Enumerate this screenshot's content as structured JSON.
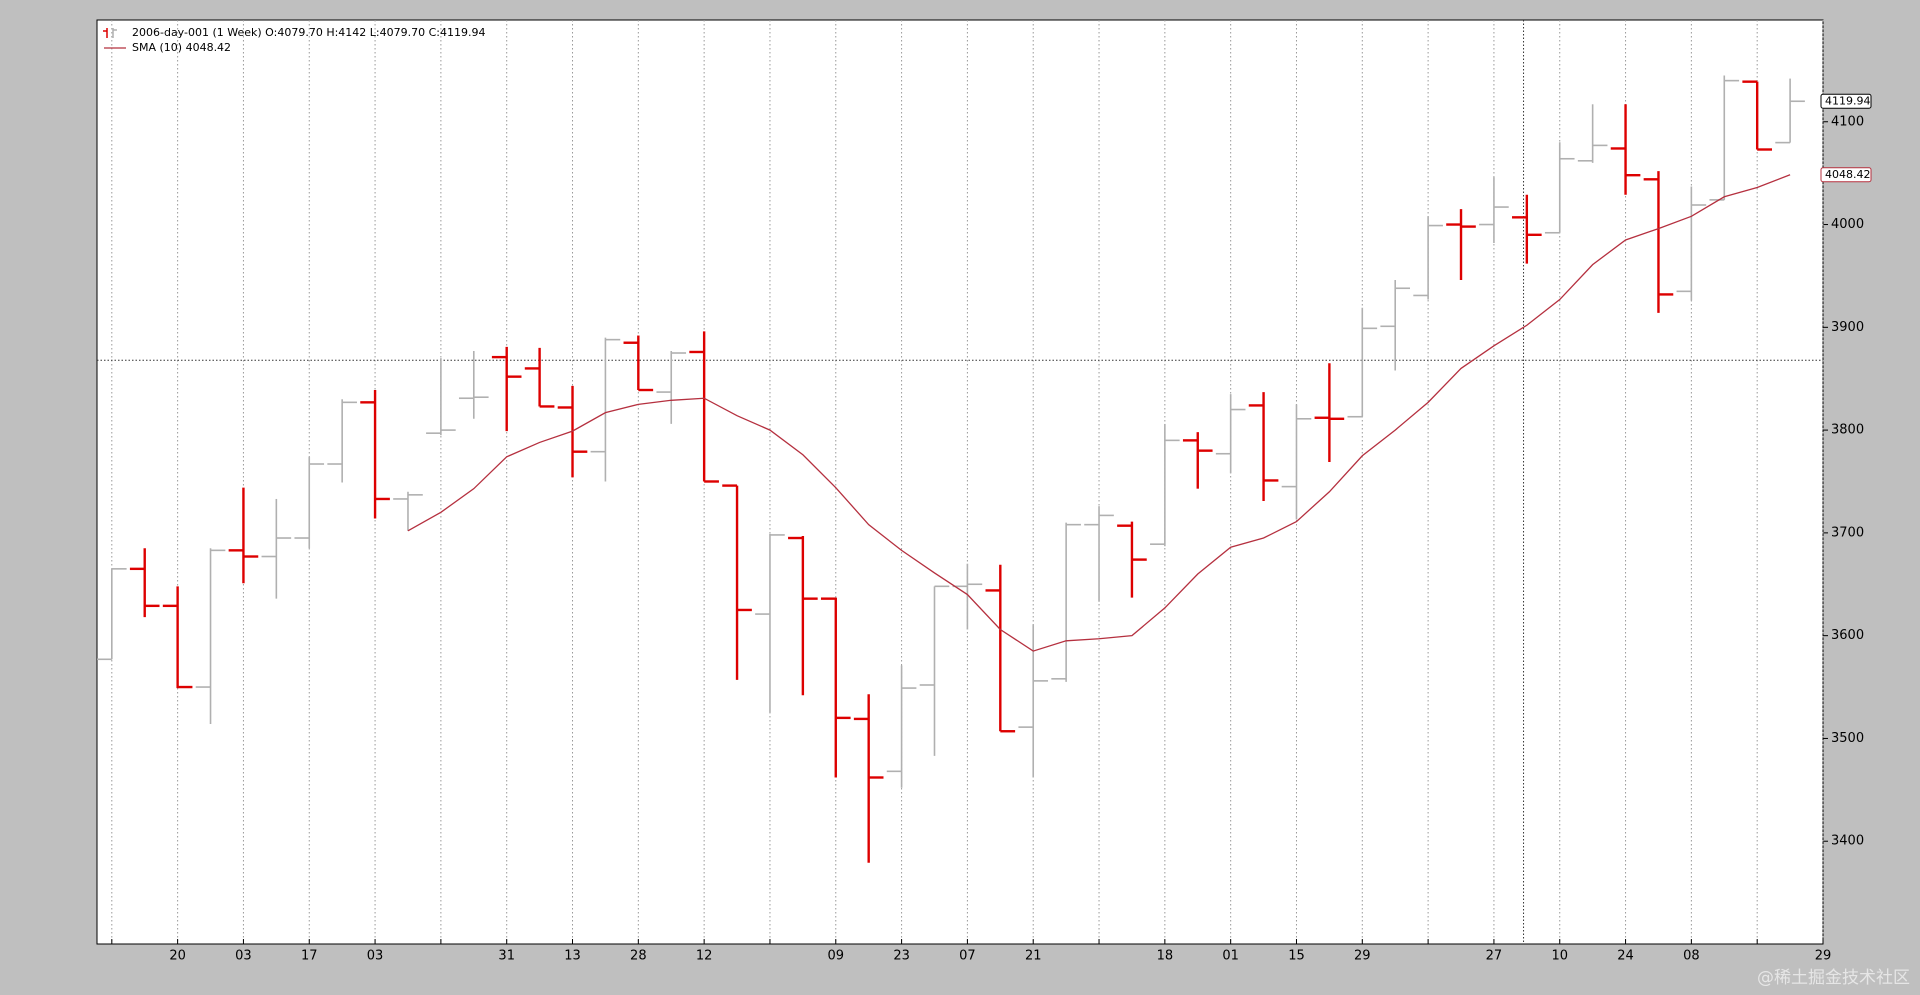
{
  "chart_data": {
    "type": "ohlc",
    "x": [
      0,
      1,
      2,
      3,
      4,
      5,
      6,
      7,
      8,
      9,
      10,
      11,
      12,
      13,
      14,
      15,
      16,
      17,
      18,
      19,
      20,
      21,
      22,
      23,
      24,
      25,
      26,
      27,
      28,
      29,
      30,
      31,
      32,
      33,
      34,
      35,
      36,
      37,
      38,
      39,
      40,
      41,
      42,
      43,
      44,
      45,
      46,
      47,
      48,
      49,
      50,
      51
    ],
    "series": [
      {
        "name": "2006-day-001 (1 Week) O:4079.70 H:4142 L:4079.70 C:4119.94",
        "up_color": "#b0b0b0",
        "down_color": "#dd0000",
        "open": [
          3577,
          3665,
          3629,
          3550,
          3683,
          3677,
          3695,
          3767,
          3827,
          3733,
          3797,
          3831,
          3871,
          3860,
          3822,
          3779,
          3885,
          3837,
          3876,
          3746,
          3621,
          3695,
          3636,
          3519,
          3468,
          3552,
          3648,
          3644,
          3511,
          3558,
          3708,
          3707,
          3689,
          3790,
          3777,
          3824,
          3745,
          3812,
          3813,
          3901,
          3931,
          4000,
          4000,
          4007,
          3992,
          4062,
          4074,
          4044,
          3935,
          4024,
          4139,
          4079.7
        ],
        "high": [
          3665,
          3685,
          3648,
          3685,
          3744,
          3733,
          3774,
          3830,
          3839,
          3740,
          3870,
          3877,
          3881,
          3880,
          3843,
          3890,
          3892,
          3877,
          3896,
          3746,
          3699,
          3697,
          3637,
          3543,
          3571,
          3648,
          3670,
          3669,
          3611,
          3710,
          3726,
          3711,
          3806,
          3798,
          3835,
          3837,
          3825,
          3865,
          3919,
          3946,
          4008,
          4015,
          4046,
          4029,
          4080,
          4117,
          4117,
          4052,
          4037,
          4145,
          4139,
          4142
        ],
        "low": [
          3577,
          3618,
          3549,
          3514,
          3651,
          3636,
          3685,
          3749,
          3714,
          3702,
          3795,
          3811,
          3799,
          3823,
          3754,
          3750,
          3839,
          3806,
          3750,
          3557,
          3525,
          3542,
          3462,
          3379,
          3452,
          3483,
          3606,
          3507,
          3462,
          3555,
          3633,
          3637,
          3687,
          3743,
          3758,
          3731,
          3713,
          3769,
          3813,
          3858,
          3927,
          3946,
          3982,
          3962,
          3992,
          4060,
          4029,
          3914,
          3926,
          4024,
          4073,
          4079.7
        ],
        "close": [
          3665,
          3629,
          3550,
          3683,
          3677,
          3695,
          3767,
          3827,
          3733,
          3737,
          3800,
          3832,
          3852,
          3823,
          3779,
          3888,
          3839,
          3875,
          3750,
          3625,
          3698,
          3636,
          3520,
          3462,
          3549,
          3648,
          3650,
          3507,
          3556,
          3708,
          3717,
          3674,
          3790,
          3780,
          3820,
          3751,
          3811,
          3811,
          3899,
          3938,
          3999,
          3998,
          4017,
          3990,
          4064,
          4077,
          4048,
          3932,
          4019,
          4140,
          4073,
          4119.94
        ]
      },
      {
        "name": "SMA (10) 4048.42",
        "color": "#b5303f",
        "values": [
          null,
          null,
          null,
          null,
          null,
          null,
          null,
          null,
          null,
          3702,
          3720,
          3743,
          3774,
          3788,
          3799,
          3817,
          3825,
          3829,
          3831,
          3814,
          3800,
          3776,
          3744,
          3708,
          3683,
          3661,
          3640,
          3606,
          3585,
          3595,
          3597,
          3600,
          3627,
          3660,
          3686,
          3695,
          3711,
          3740,
          3775,
          3800,
          3827,
          3860,
          3882,
          3902,
          3927,
          3961,
          3985,
          3996,
          4008,
          4027,
          4036,
          4048.42
        ]
      }
    ],
    "xlim": [
      -0.45,
      52
    ],
    "xticks": [
      {
        "value": 2,
        "label": "20"
      },
      {
        "value": 4,
        "label": "03"
      },
      {
        "value": 6,
        "label": "17"
      },
      {
        "value": 8,
        "label": "03"
      },
      {
        "value": 12,
        "label": "31"
      },
      {
        "value": 14,
        "label": "13"
      },
      {
        "value": 16,
        "label": "28"
      },
      {
        "value": 18,
        "label": "12"
      },
      {
        "value": 22,
        "label": "09"
      },
      {
        "value": 24,
        "label": "23"
      },
      {
        "value": 26,
        "label": "07"
      },
      {
        "value": 28,
        "label": "21"
      },
      {
        "value": 32,
        "label": "18"
      },
      {
        "value": 34,
        "label": "01"
      },
      {
        "value": 36,
        "label": "15"
      },
      {
        "value": 38,
        "label": "29"
      },
      {
        "value": 42,
        "label": "27"
      },
      {
        "value": 44,
        "label": "10"
      },
      {
        "value": 46,
        "label": "24"
      },
      {
        "value": 48,
        "label": "08"
      },
      {
        "value": 52,
        "label": "29"
      }
    ],
    "xgrid_unlabeled": [
      0,
      10,
      20,
      30,
      40,
      50
    ],
    "ylim": [
      3300,
      4199
    ],
    "yticks": [
      3400,
      3500,
      3600,
      3700,
      3800,
      3900,
      4000,
      4100
    ],
    "grid": true,
    "crosshair": {
      "x": 42.9,
      "y": 3868
    },
    "watermark": "@稀土掘金技术社区"
  }
}
